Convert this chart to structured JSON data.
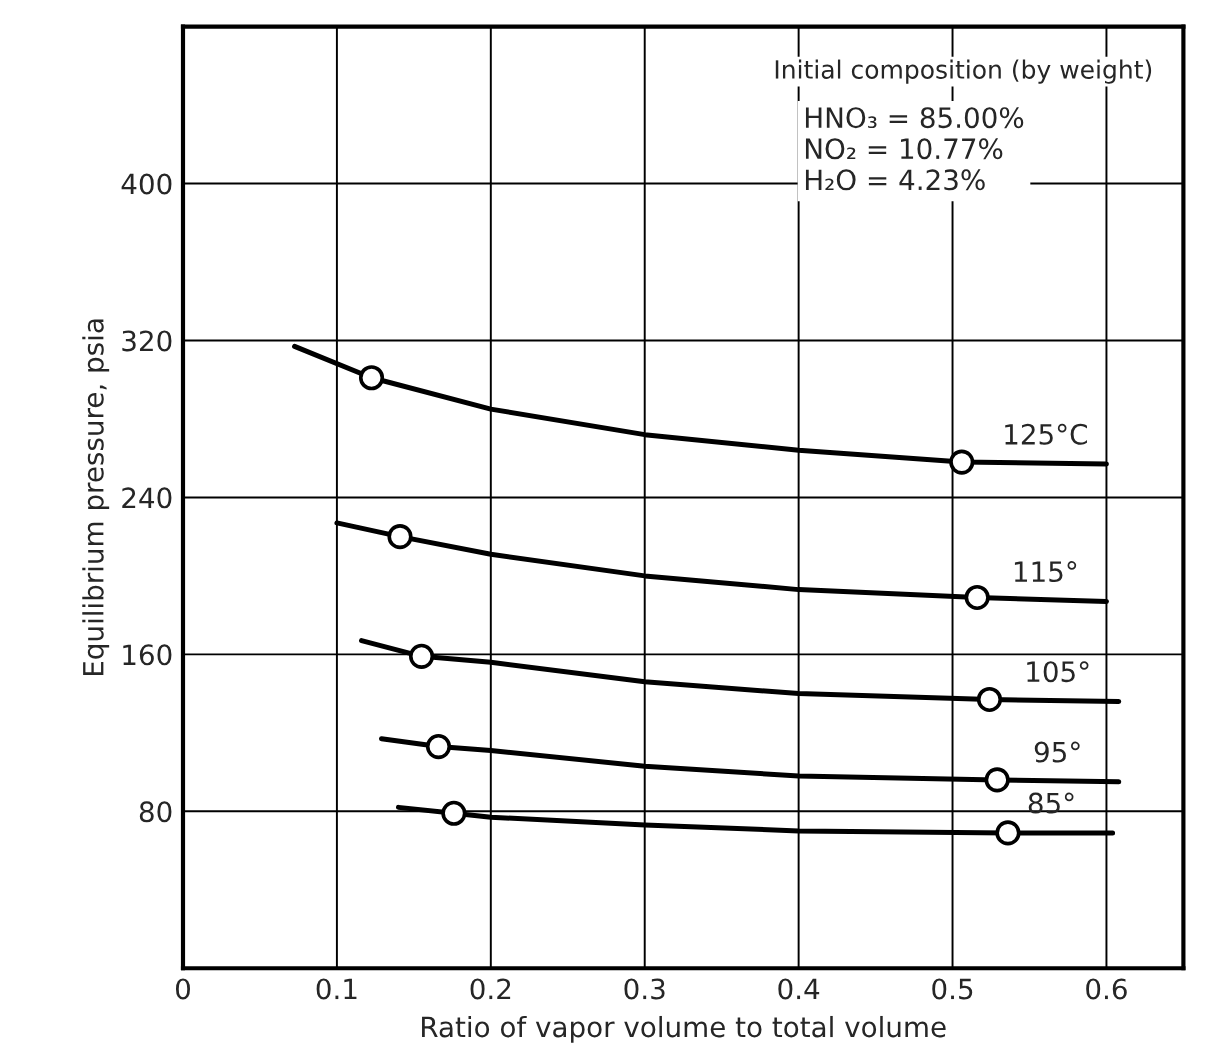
{
  "chart_data": {
    "type": "line",
    "xlabel": "Ratio of vapor volume to total volume",
    "ylabel": "Equilibrium pressure, psia",
    "xlim": [
      0,
      0.65
    ],
    "ylim": [
      0,
      480
    ],
    "xticks": [
      0,
      0.1,
      0.2,
      0.3,
      0.4,
      0.5,
      0.6
    ],
    "yticks": [
      80,
      160,
      240,
      320,
      400
    ],
    "grid": true,
    "marker": "none",
    "line_style": "solid",
    "series": [
      {
        "name": "125°C",
        "color": "#000000",
        "x": [
          0.0725,
          0.1225,
          0.2,
          0.3,
          0.4,
          0.506,
          0.6
        ],
        "values": [
          317,
          301,
          285,
          272,
          264,
          258,
          257
        ]
      },
      {
        "name": "115°",
        "color": "#000000",
        "x": [
          0.1,
          0.141,
          0.2,
          0.3,
          0.4,
          0.516,
          0.6
        ],
        "values": [
          227,
          220,
          211,
          200,
          193,
          189,
          187
        ]
      },
      {
        "name": "105°",
        "color": "#000000",
        "x": [
          0.116,
          0.155,
          0.2,
          0.3,
          0.4,
          0.524,
          0.608
        ],
        "values": [
          167,
          159,
          156,
          146,
          140,
          137,
          136
        ]
      },
      {
        "name": "95°",
        "color": "#000000",
        "x": [
          0.129,
          0.166,
          0.2,
          0.3,
          0.4,
          0.529,
          0.608
        ],
        "values": [
          117,
          113,
          111,
          103,
          98,
          96,
          95
        ]
      },
      {
        "name": "85°",
        "color": "#000000",
        "x": [
          0.14,
          0.176,
          0.2,
          0.3,
          0.4,
          0.536,
          0.604
        ],
        "values": [
          82,
          79,
          77,
          73,
          70,
          69,
          69
        ]
      },
      {
        "type": "scatter",
        "marker": "circle",
        "color": "#000000",
        "x": [
          0.1225,
          0.506,
          0.141,
          0.516,
          0.155,
          0.524,
          0.166,
          0.529,
          0.176,
          0.536
        ],
        "values": [
          301,
          258,
          220,
          189,
          159,
          137,
          113,
          96,
          79,
          69
        ]
      }
    ],
    "annotations": [
      "Initial composition (by weight)",
      "HNO₃ = 85.00%",
      "NO₂ = 10.77%",
      "H₂O = 4.23%"
    ]
  }
}
